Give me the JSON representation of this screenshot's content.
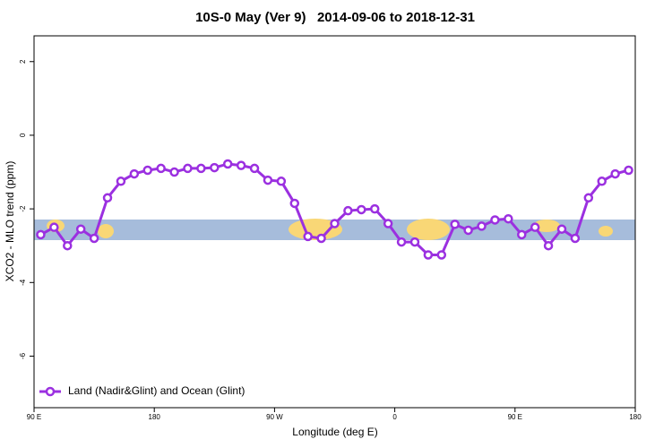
{
  "chart_data": {
    "type": "line",
    "title": "10S-0 May (Ver 9)   2014-09-06 to 2018-12-31",
    "x_label": "Longitude (deg E)",
    "y_label": "XCO2 - MLO trend (ppm)",
    "x": [
      95,
      105,
      115,
      125,
      135,
      145,
      155,
      165,
      175,
      185,
      195,
      205,
      215,
      225,
      235,
      245,
      255,
      265,
      275,
      285,
      295,
      305,
      315,
      325,
      335,
      345,
      355,
      365,
      375,
      385,
      395,
      405,
      415,
      425,
      435,
      445,
      455,
      465,
      475,
      485,
      495,
      505,
      515,
      525,
      535
    ],
    "series": [
      {
        "name": "Land (Nadir&Glint) and Ocean (Glint)",
        "color": "#9b30e0",
        "values": [
          -2.7,
          -2.5,
          -3.0,
          -2.55,
          -2.8,
          -1.7,
          -1.25,
          -1.05,
          -0.95,
          -0.9,
          -1.0,
          -0.9,
          -0.9,
          -0.88,
          -0.78,
          -0.82,
          -0.9,
          -1.22,
          -1.25,
          -1.85,
          -2.75,
          -2.8,
          -2.4,
          -2.05,
          -2.02,
          -2.0,
          -2.4,
          -2.9,
          -2.9,
          -3.25,
          -3.25,
          -2.42,
          -2.58,
          -2.47,
          -2.3,
          -2.27,
          -2.7,
          -2.5,
          -3.0,
          -2.55,
          -2.8,
          -1.7,
          -1.25,
          -1.05,
          -0.95
        ]
      }
    ],
    "xlim": [
      90,
      540
    ],
    "xticks": [
      {
        "value": 90,
        "label": "90 E"
      },
      180,
      {
        "value": 270,
        "label": "90 W"
      },
      {
        "value": 360,
        "label": "0"
      },
      {
        "value": 450,
        "label": "90 E"
      },
      {
        "value": 540,
        "label": "180"
      }
    ],
    "ylim": [
      -7.4,
      2.7
    ],
    "yticks": [
      2,
      0,
      -2,
      -4,
      -6
    ],
    "legend": "bottom-left"
  }
}
